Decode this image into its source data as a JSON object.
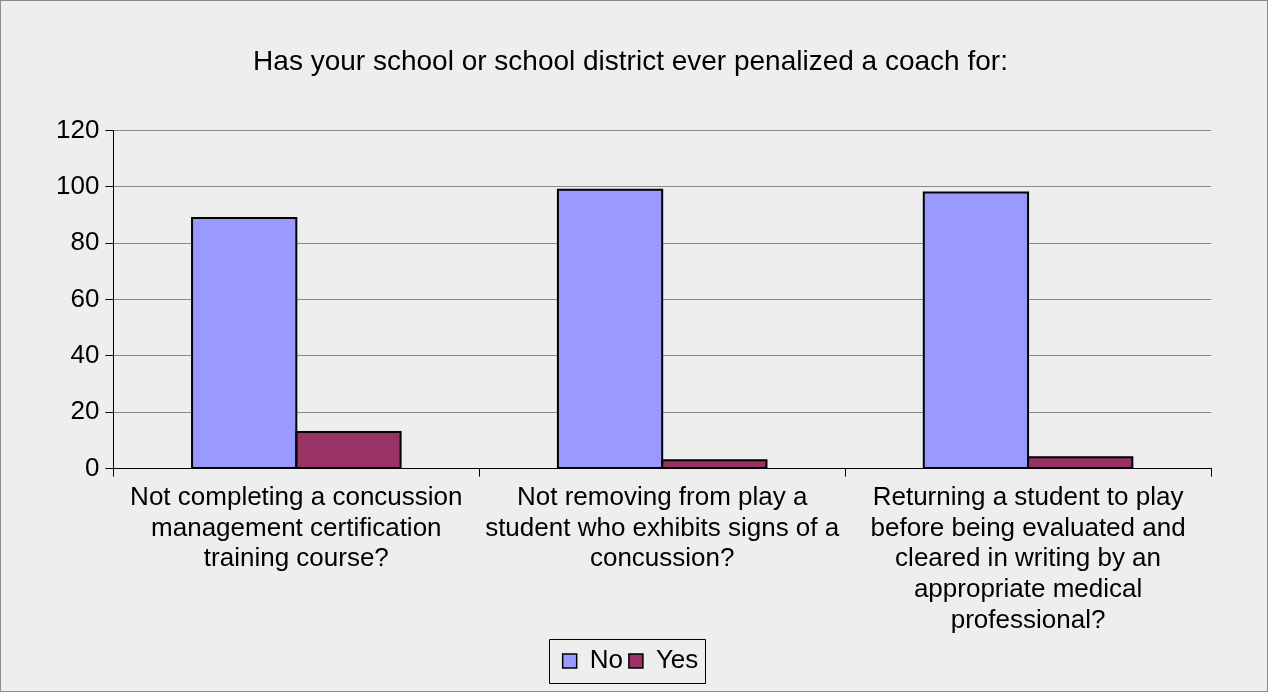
{
  "chart_data": {
    "type": "bar",
    "title": "Has your school or school district ever penalized a coach for:",
    "categories": [
      "Not completing a concussion management certification training course?",
      "Not removing from play a student who exhibits signs of a concussion?",
      "Returning a student to play before being evaluated and cleared in writing by an appropriate medical professional?"
    ],
    "series": [
      {
        "name": "No",
        "color": "#9999ff",
        "values": [
          89,
          99,
          98
        ]
      },
      {
        "name": "Yes",
        "color": "#993366",
        "values": [
          13,
          3,
          4
        ]
      }
    ],
    "ylim": [
      0,
      120
    ],
    "yticks": [
      0,
      20,
      40,
      60,
      80,
      100,
      120
    ],
    "grid": "y",
    "legend": "bottom"
  }
}
